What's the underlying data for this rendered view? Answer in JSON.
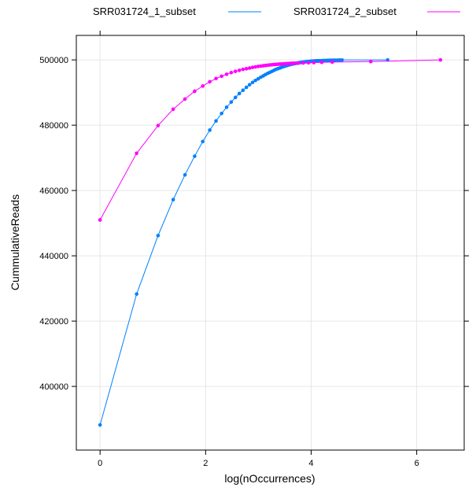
{
  "chart_data": {
    "type": "line",
    "title": "",
    "xlabel": "log(nOccurrences)",
    "ylabel": "CummulativeReads",
    "xlim": [
      -0.45,
      6.9
    ],
    "ylim": [
      380500,
      507500
    ],
    "xticks": [
      0,
      2,
      4,
      6
    ],
    "xtick_labels": [
      "0",
      "2",
      "4",
      "6"
    ],
    "yticks": [
      400000,
      420000,
      440000,
      460000,
      480000,
      500000
    ],
    "ytick_labels": [
      "400000",
      "420000",
      "440000",
      "460000",
      "480000",
      "500000"
    ],
    "grid": true,
    "legend_position": "top",
    "series": [
      {
        "name": "SRR031724_1_subset",
        "color": "#0080ff",
        "x": [
          0,
          0.693,
          1.099,
          1.386,
          1.609,
          1.792,
          1.946,
          2.079,
          2.197,
          2.303,
          2.398,
          2.485,
          2.565,
          2.639,
          2.708,
          2.773,
          2.833,
          2.89,
          2.944,
          2.996,
          3.045,
          3.091,
          3.135,
          3.178,
          3.219,
          3.258,
          3.296,
          3.332,
          3.367,
          3.401,
          3.434,
          3.466,
          3.497,
          3.526,
          3.555,
          3.584,
          3.611,
          3.638,
          3.664,
          3.689,
          3.714,
          3.738,
          3.761,
          3.784,
          3.807,
          3.829,
          3.85,
          3.871,
          3.892,
          3.912,
          3.932,
          3.951,
          3.97,
          3.989,
          4.007,
          4.025,
          4.043,
          4.06,
          4.078,
          4.094,
          4.111,
          4.127,
          4.143,
          4.159,
          4.19,
          4.22,
          4.25,
          4.277,
          4.304,
          4.331,
          4.357,
          4.382,
          4.419,
          4.454,
          4.5,
          4.543,
          4.585,
          5.45
        ],
        "values": [
          388200,
          428300,
          446200,
          457200,
          464800,
          470500,
          475000,
          478500,
          481300,
          483600,
          485500,
          487100,
          488500,
          489700,
          490700,
          491600,
          492400,
          493100,
          493700,
          494200,
          494700,
          495100,
          495500,
          495900,
          496200,
          496500,
          496800,
          497100,
          497300,
          497500,
          497700,
          497900,
          498050,
          498200,
          498350,
          498480,
          498600,
          498700,
          498800,
          498880,
          498960,
          499030,
          499100,
          499160,
          499220,
          499270,
          499320,
          499370,
          499410,
          499450,
          499480,
          499510,
          499540,
          499570,
          499600,
          499620,
          499640,
          499660,
          499680,
          499700,
          499710,
          499720,
          499730,
          499740,
          499760,
          499780,
          499800,
          499820,
          499840,
          499850,
          499860,
          499870,
          499890,
          499910,
          499930,
          499950,
          499970,
          500000
        ]
      },
      {
        "name": "SRR031724_2_subset",
        "color": "#ff00ff",
        "x": [
          0,
          0.693,
          1.099,
          1.386,
          1.609,
          1.792,
          1.946,
          2.079,
          2.197,
          2.303,
          2.398,
          2.485,
          2.565,
          2.639,
          2.708,
          2.773,
          2.833,
          2.89,
          2.944,
          2.996,
          3.045,
          3.091,
          3.135,
          3.178,
          3.219,
          3.258,
          3.296,
          3.332,
          3.367,
          3.401,
          3.434,
          3.466,
          3.497,
          3.526,
          3.555,
          3.584,
          3.611,
          3.638,
          3.664,
          3.7,
          3.761,
          3.85,
          3.95,
          4.05,
          4.2,
          4.4,
          5.13,
          6.45
        ],
        "values": [
          451000,
          471400,
          479900,
          484900,
          488000,
          490400,
          492000,
          493300,
          494300,
          495000,
          495600,
          496100,
          496500,
          496800,
          497100,
          497300,
          497500,
          497700,
          497850,
          498000,
          498100,
          498200,
          498300,
          498380,
          498450,
          498510,
          498570,
          498620,
          498670,
          498710,
          498750,
          498790,
          498820,
          498850,
          498880,
          498910,
          498930,
          498950,
          498970,
          499000,
          499030,
          499080,
          499120,
          499170,
          499250,
          499350,
          499500,
          500000
        ]
      }
    ]
  }
}
